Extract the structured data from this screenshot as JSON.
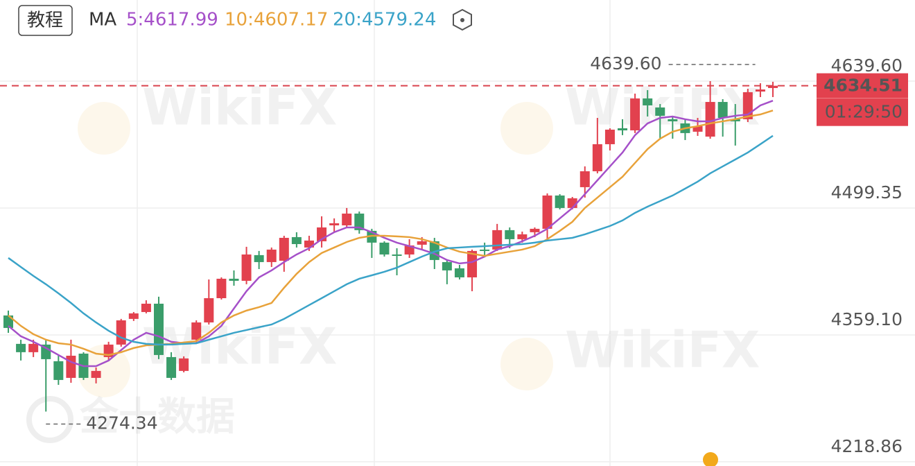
{
  "header": {
    "button": "教程",
    "indicator": "MA"
  },
  "watermarks": [
    "WikiFX",
    "WikiFX",
    "WikiFX",
    "WikiFX",
    "金十数据"
  ],
  "chart_data": {
    "type": "candlestick",
    "up_color": "#e2414e",
    "down_color": "#3a9d6a",
    "open": [
      4380.6,
      4349.2,
      4340.0,
      4348.4,
      4330.0,
      4311.6,
      4338.4,
      4311.6,
      4334.6,
      4348.4,
      4376.8,
      4384.4,
      4393.6,
      4334.6,
      4319.3,
      4353.8,
      4372.9,
      4399.7,
      4421.2,
      4418.9,
      4447.3,
      4439.6,
      4441.1,
      4467.2,
      4455.7,
      4462.6,
      4480.2,
      4480.2,
      4493.2,
      4474.1,
      4461.1,
      4448.0,
      4448.0,
      4458.8,
      4462.6,
      4439.6,
      4432.7,
      4422.7,
      4453.4,
      4453.4,
      4474.9,
      4464.9,
      4472.6,
      4476.4,
      4513.2,
      4499.4,
      4522.4,
      4540.0,
      4569.9,
      4587.5,
      4585.2,
      4620.5,
      4610.5,
      4597.5,
      4592.9,
      4583.7,
      4578.3,
      4616.6,
      4597.5,
      4597.5,
      4628.1,
      4632.0
    ],
    "high": [
      4386.0,
      4353.8,
      4353.8,
      4353.8,
      4336.9,
      4353.8,
      4340.0,
      4323.1,
      4351.5,
      4376.8,
      4384.4,
      4397.4,
      4401.3,
      4340.0,
      4335.4,
      4375.2,
      4420.4,
      4422.7,
      4430.4,
      4456.5,
      4451.9,
      4455.7,
      4468.7,
      4472.6,
      4468.7,
      4490.2,
      4487.9,
      4499.4,
      4495.5,
      4476.4,
      4462.6,
      4454.9,
      4464.9,
      4467.2,
      4466.4,
      4442.7,
      4436.5,
      4453.4,
      4461.1,
      4481.8,
      4477.9,
      4473.3,
      4477.9,
      4515.5,
      4514.7,
      4511.6,
      4545.4,
      4599.0,
      4587.5,
      4597.5,
      4625.8,
      4629.7,
      4614.3,
      4600.5,
      4597.5,
      4599.0,
      4639.6,
      4619.7,
      4614.3,
      4631.2,
      4637.3,
      4638.9
    ],
    "low": [
      4361.4,
      4330.8,
      4334.6,
      4274.34,
      4303.9,
      4306.2,
      4309.3,
      4305.5,
      4330.8,
      4346.1,
      4374.5,
      4382.9,
      4332.3,
      4309.3,
      4317.7,
      4349.9,
      4370.6,
      4398.2,
      4413.5,
      4415.1,
      4431.9,
      4434.2,
      4428.9,
      4455.7,
      4451.9,
      4455.7,
      4472.6,
      4477.9,
      4471.0,
      4444.2,
      4445.7,
      4425.0,
      4444.2,
      4453.4,
      4431.9,
      4415.1,
      4420.4,
      4407.4,
      4445.7,
      4451.9,
      4454.9,
      4461.1,
      4467.2,
      4463.4,
      4497.8,
      4497.8,
      4510.9,
      4537.7,
      4563.0,
      4579.9,
      4582.2,
      4600.5,
      4576.0,
      4576.0,
      4574.5,
      4579.1,
      4576.0,
      4578.3,
      4568.4,
      4594.4,
      4622.0,
      4622.0
    ],
    "close": [
      4366.8,
      4340.0,
      4349.2,
      4332.3,
      4309.3,
      4336.1,
      4311.6,
      4319.3,
      4348.4,
      4375.2,
      4382.9,
      4393.6,
      4336.9,
      4311.6,
      4333.1,
      4372.9,
      4399.7,
      4421.2,
      4418.9,
      4448.0,
      4439.6,
      4453.4,
      4466.4,
      4459.5,
      4463.4,
      4477.9,
      4482.5,
      4493.2,
      4474.9,
      4461.1,
      4448.0,
      4447.3,
      4458.0,
      4462.6,
      4441.9,
      4430.4,
      4422.7,
      4451.9,
      4451.9,
      4474.9,
      4464.9,
      4470.3,
      4476.4,
      4513.2,
      4499.4,
      4510.1,
      4540.0,
      4569.9,
      4586.0,
      4585.2,
      4620.5,
      4612.8,
      4601.3,
      4595.2,
      4582.2,
      4589.8,
      4616.6,
      4599.0,
      4595.2,
      4627.4,
      4630.4,
      4634.51
    ],
    "series": [
      {
        "name": "5:4617.99",
        "color": "#a550c9",
        "values": [
          4369.1,
          4357.6,
          4351.5,
          4344.6,
          4336.9,
          4329.2,
          4324.6,
          4324.6,
          4330.8,
          4342.3,
          4353.8,
          4361.4,
          4357.6,
          4351.5,
          4349.9,
          4349.9,
          4357.6,
          4369.1,
          4388.3,
          4407.4,
          4422.7,
          4430.4,
          4439.6,
          4448.0,
          4454.9,
          4464.9,
          4472.6,
          4477.9,
          4477.9,
          4472.6,
          4466.4,
          4461.1,
          4457.2,
          4453.4,
          4448.8,
          4441.9,
          4438.1,
          4439.6,
          4445.7,
          4453.4,
          4457.2,
          4462.6,
          4468.7,
          4476.4,
          4487.9,
          4499.4,
          4514.7,
          4530.0,
          4545.4,
          4560.7,
          4579.9,
          4592.9,
          4599.0,
          4600.5,
          4597.5,
          4595.2,
          4595.2,
          4599.0,
          4601.3,
          4602.8,
          4612.8,
          4617.99
        ]
      },
      {
        "name": "10:4607.17",
        "color": "#e8a23a",
        "values": [
          4380.6,
          4369.1,
          4359.9,
          4353.8,
          4349.9,
          4348.4,
          4343.8,
          4338.4,
          4336.9,
          4340.0,
          4344.6,
          4347.6,
          4348.4,
          4349.2,
          4350.7,
          4352.2,
          4361.4,
          4372.9,
          4380.6,
          4386.0,
          4389.8,
          4394.4,
          4411.2,
          4426.6,
          4439.6,
          4449.6,
          4455.7,
          4461.8,
          4466.4,
          4468.7,
          4468.7,
          4468.0,
          4467.2,
          4464.9,
          4461.1,
          4455.7,
          4451.1,
          4448.8,
          4446.5,
          4448.8,
          4451.1,
          4453.4,
          4457.2,
          4464.9,
          4474.1,
          4484.1,
          4499.4,
          4510.9,
          4522.4,
          4533.9,
          4549.2,
          4564.5,
          4576.0,
          4583.7,
          4587.5,
          4589.8,
          4592.9,
          4595.2,
          4597.5,
          4600.5,
          4602.8,
          4607.17
        ]
      },
      {
        "name": "20:4579.24",
        "color": "#3aa3c8",
        "values": [
          4444.2,
          4434.2,
          4424.3,
          4415.1,
          4405.1,
          4394.4,
          4382.9,
          4372.9,
          4363.7,
          4356.1,
          4351.5,
          4349.2,
          4348.4,
          4348.4,
          4349.2,
          4349.9,
          4353.8,
          4357.6,
          4361.4,
          4364.5,
          4367.6,
          4370.6,
          4376.8,
          4384.4,
          4392.1,
          4399.7,
          4407.4,
          4415.1,
          4421.2,
          4425.0,
          4428.9,
          4433.5,
          4439.6,
          4445.7,
          4451.1,
          4454.9,
          4455.7,
          4456.5,
          4457.2,
          4458.0,
          4458.8,
          4459.5,
          4461.1,
          4463.4,
          4464.9,
          4466.4,
          4470.3,
          4474.9,
          4479.5,
          4485.6,
          4494.0,
          4500.9,
          4507.0,
          4513.2,
          4520.8,
          4528.5,
          4537.7,
          4545.4,
          4553.0,
          4560.7,
          4569.9,
          4579.24
        ]
      }
    ],
    "ylim": [
      4214.2,
      4729.3
    ],
    "yticks": [
      {
        "value": 4639.6,
        "label": "4639.60"
      },
      4499.35,
      {
        "value": 4359.1,
        "label": "4359.10"
      },
      4218.86
    ],
    "grid": true,
    "countdown": "01:29:50",
    "annotations": [
      {
        "value": 4639.6,
        "label": "4639.60"
      },
      {
        "value": 4274.34,
        "label": "4274.34"
      }
    ]
  }
}
